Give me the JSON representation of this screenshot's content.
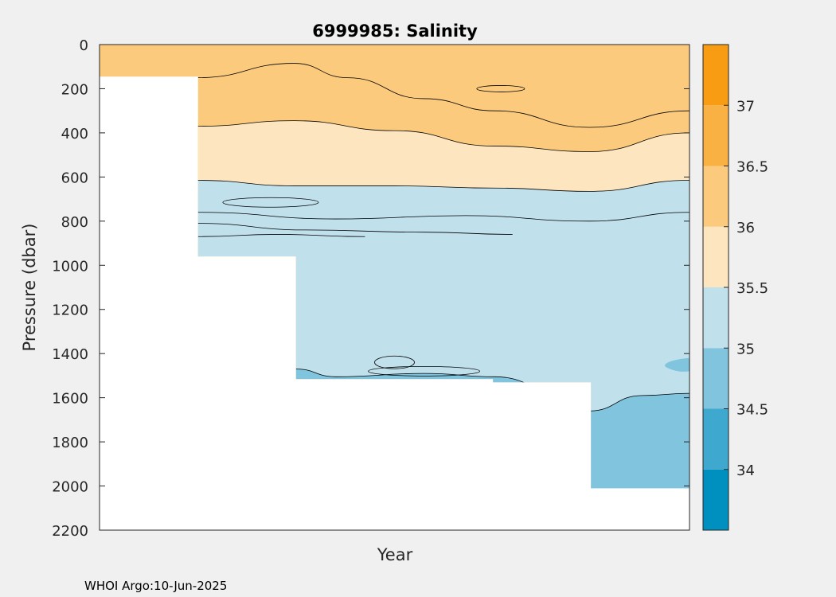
{
  "chart_data": {
    "type": "filled-contour",
    "title": "6999985:  Salinity",
    "xlabel": "Year",
    "ylabel": "Pressure (dbar)",
    "y_reversed": true,
    "ylim": [
      0,
      2200
    ],
    "yticks": [
      0,
      200,
      400,
      600,
      800,
      1000,
      1200,
      1400,
      1600,
      1800,
      2000,
      2200
    ],
    "xticks": [],
    "colorbar": {
      "range": [
        33.5,
        37.5
      ],
      "ticks": [
        34,
        34.5,
        35,
        35.5,
        36,
        36.5,
        37
      ],
      "bins": [
        {
          "range": [
            33.5,
            34.0
          ],
          "color": "#0090bf"
        },
        {
          "range": [
            34.0,
            34.5
          ],
          "color": "#3fa8cf"
        },
        {
          "range": [
            34.5,
            35.0
          ],
          "color": "#80c4de"
        },
        {
          "range": [
            35.0,
            35.5
          ],
          "color": "#c0e0ec"
        },
        {
          "range": [
            35.5,
            36.0
          ],
          "color": "#fde6bf"
        },
        {
          "range": [
            36.0,
            36.5
          ],
          "color": "#fbca7d"
        },
        {
          "range": [
            36.5,
            37.0
          ],
          "color": "#f9b143"
        },
        {
          "range": [
            37.0,
            37.5
          ],
          "color": "#f89d13"
        }
      ]
    },
    "profile_max_depth_segments": [
      {
        "x": [
          0.0,
          0.167
        ],
        "max_pressure": 145
      },
      {
        "x": [
          0.167,
          0.333
        ],
        "max_pressure": 960
      },
      {
        "x": [
          0.333,
          0.667
        ],
        "max_pressure": 1515
      },
      {
        "x": [
          0.667,
          0.833
        ],
        "max_pressure": 1530
      },
      {
        "x": [
          0.833,
          1.0
        ],
        "max_pressure": 2010
      }
    ],
    "layers": [
      {
        "salinity_bin": "36.0-36.5",
        "top_pressure": 0,
        "bottom_pressure_series": [
          {
            "x": 0.167,
            "p": 370
          },
          {
            "x": 0.33,
            "p": 345
          },
          {
            "x": 0.5,
            "p": 390
          },
          {
            "x": 0.67,
            "p": 460
          },
          {
            "x": 0.83,
            "p": 485
          },
          {
            "x": 1.0,
            "p": 400
          }
        ]
      },
      {
        "salinity_bin": "35.5-36.0",
        "bottom_pressure_series": [
          {
            "x": 0.167,
            "p": 615
          },
          {
            "x": 0.33,
            "p": 640
          },
          {
            "x": 0.5,
            "p": 640
          },
          {
            "x": 0.67,
            "p": 650
          },
          {
            "x": 0.83,
            "p": 665
          },
          {
            "x": 1.0,
            "p": 615
          }
        ]
      },
      {
        "salinity_bin": "35.0-35.5",
        "description_pressure_range": [
          615,
          1500
        ]
      },
      {
        "salinity_bin": "34.5-35.0",
        "description_pressure_range": [
          1460,
          2010
        ]
      }
    ]
  },
  "footer": {
    "text": "WHOI Argo:10-Jun-2025"
  }
}
